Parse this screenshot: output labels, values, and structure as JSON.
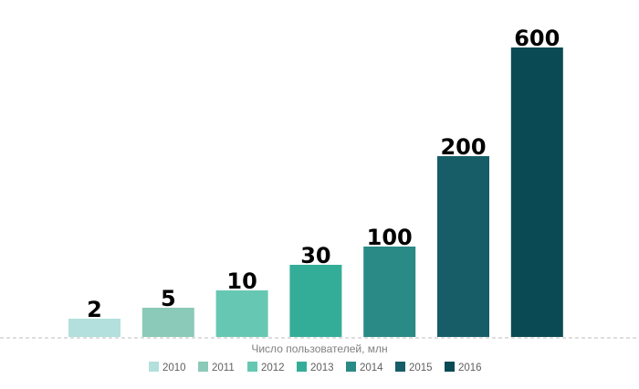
{
  "chart_data": {
    "type": "bar",
    "categories": [
      "2010",
      "2011",
      "2012",
      "2013",
      "2014",
      "2015",
      "2016"
    ],
    "values": [
      2,
      5,
      10,
      30,
      100,
      200,
      600
    ],
    "data_labels": [
      "2",
      "5",
      "10",
      "30",
      "100",
      "200",
      "600"
    ],
    "colors": [
      "#b3dfdc",
      "#8bc9b8",
      "#66c8b2",
      "#34ad98",
      "#2a8a85",
      "#175d68",
      "#0a4a54"
    ],
    "title": "",
    "xlabel": "Число пользователей, млн",
    "ylabel": "",
    "scale": "non-linear (bar heights not proportional to values)",
    "grid": false,
    "legend": {
      "position": "bottom",
      "entries": [
        "2010",
        "2011",
        "2012",
        "2013",
        "2014",
        "2015",
        "2016"
      ]
    }
  }
}
